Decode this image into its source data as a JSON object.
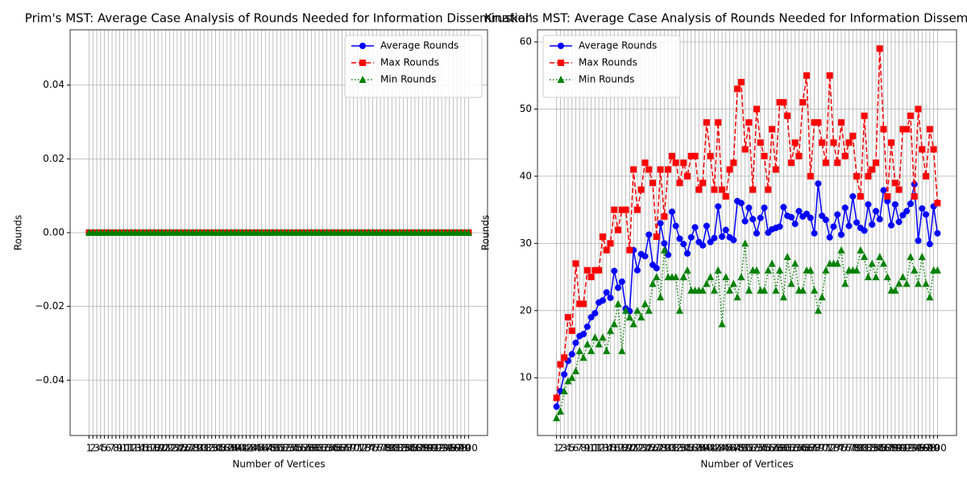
{
  "chart_data": [
    {
      "type": "line",
      "title": "Prim's MST: Average Case Analysis of Rounds Needed for Information Dissemination",
      "xlabel": "Number of Vertices",
      "ylabel": "Rounds",
      "categories": [
        "1",
        "2",
        "3",
        "4",
        "5",
        "6",
        "7",
        "8",
        "9",
        "10",
        "11",
        "12",
        "13",
        "14",
        "15",
        "16",
        "17",
        "18",
        "19",
        "20",
        "21",
        "22",
        "23",
        "24",
        "25",
        "26",
        "27",
        "28",
        "29",
        "30",
        "31",
        "32",
        "33",
        "34",
        "35",
        "36",
        "37",
        "38",
        "39",
        "40",
        "41",
        "42",
        "43",
        "44",
        "45",
        "46",
        "47",
        "48",
        "49",
        "50",
        "51",
        "52",
        "53",
        "54",
        "55",
        "56",
        "57",
        "58",
        "59",
        "60",
        "61",
        "62",
        "63",
        "64",
        "65",
        "66",
        "67",
        "68",
        "69",
        "70",
        "71",
        "72",
        "73",
        "74",
        "75",
        "76",
        "77",
        "78",
        "79",
        "80",
        "81",
        "82",
        "83",
        "84",
        "85",
        "86",
        "87",
        "88",
        "89",
        "90",
        "91",
        "92",
        "93",
        "94",
        "95",
        "96",
        "97",
        "98",
        "99",
        "100"
      ],
      "ylim": [
        -0.055,
        0.055
      ],
      "yticks": [
        {
          "value": -0.04,
          "label": "−0.04"
        },
        {
          "value": -0.02,
          "label": "−0.02"
        },
        {
          "value": 0,
          "label": "0.00"
        },
        {
          "value": 0.02,
          "label": "0.02"
        },
        {
          "value": 0.04,
          "label": "0.04"
        }
      ],
      "grid": true,
      "legend": "upper right",
      "series": [
        {
          "name": "Average Rounds",
          "color": "#0000ff",
          "marker": "circle",
          "dash": "solid",
          "values": [
            0,
            0,
            0,
            0,
            0,
            0,
            0,
            0,
            0,
            0,
            0,
            0,
            0,
            0,
            0,
            0,
            0,
            0,
            0,
            0,
            0,
            0,
            0,
            0,
            0,
            0,
            0,
            0,
            0,
            0,
            0,
            0,
            0,
            0,
            0,
            0,
            0,
            0,
            0,
            0,
            0,
            0,
            0,
            0,
            0,
            0,
            0,
            0,
            0,
            0,
            0,
            0,
            0,
            0,
            0,
            0,
            0,
            0,
            0,
            0,
            0,
            0,
            0,
            0,
            0,
            0,
            0,
            0,
            0,
            0,
            0,
            0,
            0,
            0,
            0,
            0,
            0,
            0,
            0,
            0,
            0,
            0,
            0,
            0,
            0,
            0,
            0,
            0,
            0,
            0,
            0,
            0,
            0,
            0,
            0,
            0,
            0,
            0,
            0,
            0
          ]
        },
        {
          "name": "Max Rounds",
          "color": "#ff0000",
          "marker": "square",
          "dash": "dashed",
          "values": [
            0,
            0,
            0,
            0,
            0,
            0,
            0,
            0,
            0,
            0,
            0,
            0,
            0,
            0,
            0,
            0,
            0,
            0,
            0,
            0,
            0,
            0,
            0,
            0,
            0,
            0,
            0,
            0,
            0,
            0,
            0,
            0,
            0,
            0,
            0,
            0,
            0,
            0,
            0,
            0,
            0,
            0,
            0,
            0,
            0,
            0,
            0,
            0,
            0,
            0,
            0,
            0,
            0,
            0,
            0,
            0,
            0,
            0,
            0,
            0,
            0,
            0,
            0,
            0,
            0,
            0,
            0,
            0,
            0,
            0,
            0,
            0,
            0,
            0,
            0,
            0,
            0,
            0,
            0,
            0,
            0,
            0,
            0,
            0,
            0,
            0,
            0,
            0,
            0,
            0,
            0,
            0,
            0,
            0,
            0,
            0,
            0,
            0,
            0,
            0
          ]
        },
        {
          "name": "Min Rounds",
          "color": "#008000",
          "marker": "triangle",
          "dash": "dotted",
          "values": [
            0,
            0,
            0,
            0,
            0,
            0,
            0,
            0,
            0,
            0,
            0,
            0,
            0,
            0,
            0,
            0,
            0,
            0,
            0,
            0,
            0,
            0,
            0,
            0,
            0,
            0,
            0,
            0,
            0,
            0,
            0,
            0,
            0,
            0,
            0,
            0,
            0,
            0,
            0,
            0,
            0,
            0,
            0,
            0,
            0,
            0,
            0,
            0,
            0,
            0,
            0,
            0,
            0,
            0,
            0,
            0,
            0,
            0,
            0,
            0,
            0,
            0,
            0,
            0,
            0,
            0,
            0,
            0,
            0,
            0,
            0,
            0,
            0,
            0,
            0,
            0,
            0,
            0,
            0,
            0,
            0,
            0,
            0,
            0,
            0,
            0,
            0,
            0,
            0,
            0,
            0,
            0,
            0,
            0,
            0,
            0,
            0,
            0,
            0,
            0
          ]
        }
      ]
    },
    {
      "type": "line",
      "title": "Kruskal's MST: Average Case Analysis of Rounds Needed for Information Dissemination",
      "xlabel": "Number of Vertices",
      "ylabel": "Rounds",
      "categories": [
        "1",
        "2",
        "3",
        "4",
        "5",
        "6",
        "7",
        "8",
        "9",
        "10",
        "11",
        "12",
        "13",
        "14",
        "15",
        "16",
        "17",
        "18",
        "19",
        "20",
        "21",
        "22",
        "23",
        "24",
        "25",
        "26",
        "27",
        "28",
        "29",
        "30",
        "31",
        "32",
        "33",
        "34",
        "35",
        "36",
        "37",
        "38",
        "39",
        "40",
        "41",
        "42",
        "43",
        "44",
        "45",
        "46",
        "47",
        "48",
        "49",
        "50",
        "51",
        "52",
        "53",
        "54",
        "55",
        "56",
        "57",
        "58",
        "59",
        "60",
        "61",
        "62",
        "63",
        "64",
        "65",
        "66",
        "67",
        "68",
        "69",
        "70",
        "71",
        "72",
        "73",
        "74",
        "75",
        "76",
        "77",
        "78",
        "79",
        "80",
        "81",
        "82",
        "83",
        "84",
        "85",
        "86",
        "87",
        "88",
        "89",
        "90",
        "91",
        "92",
        "93",
        "94",
        "95",
        "96",
        "97",
        "98",
        "99",
        "100"
      ],
      "ylim": [
        1.4,
        61.8
      ],
      "yticks": [
        10,
        20,
        30,
        40,
        50,
        60
      ],
      "grid": true,
      "legend": "upper left",
      "series": [
        {
          "name": "Average Rounds",
          "color": "#0000ff",
          "marker": "circle",
          "dash": "solid",
          "values": [
            5.7,
            8,
            10.5,
            12.5,
            13.5,
            15.2,
            16.2,
            16.5,
            17.6,
            19,
            19.6,
            21.2,
            21.5,
            22.7,
            21.9,
            25.9,
            23.4,
            24.3,
            20.3,
            19.9,
            29,
            26,
            28.4,
            28.1,
            31.3,
            26.8,
            26.3,
            33,
            30,
            28.3,
            34.7,
            32.6,
            30.7,
            29.9,
            28.5,
            30.9,
            32.4,
            30.2,
            29.7,
            32.6,
            30.2,
            30.8,
            35.5,
            31,
            32,
            30.9,
            30.5,
            36.3,
            36,
            33.3,
            35.3,
            33.6,
            31.5,
            33.8,
            35.3,
            31.6,
            32.1,
            32.3,
            32.5,
            35.4,
            34.1,
            33.9,
            32.9,
            34.8,
            34,
            34.4,
            33.8,
            31.5,
            38.9,
            34.1,
            33.5,
            30.9,
            32.5,
            34.3,
            31.3,
            35.3,
            32.6,
            37,
            33.1,
            32.3,
            31.9,
            35.8,
            32.8,
            34.8,
            33.6,
            37.9,
            36.3,
            32.7,
            35.8,
            33.2,
            34.2,
            34.8,
            35.9,
            38.8,
            30.4,
            35.2,
            34.3,
            29.9,
            35.5,
            31.5
          ]
        },
        {
          "name": "Max Rounds",
          "color": "#ff0000",
          "marker": "square",
          "dash": "dashed",
          "values": [
            7,
            12,
            13,
            19,
            17,
            27,
            21,
            21,
            26,
            25,
            26,
            26,
            31,
            29,
            30,
            35,
            32,
            35,
            35,
            29,
            41,
            35,
            38,
            42,
            41,
            39,
            31,
            41,
            34,
            41,
            43,
            42,
            39,
            42,
            40,
            43,
            43,
            38,
            39,
            48,
            43,
            38,
            48,
            38,
            37,
            41,
            42,
            53,
            54,
            44,
            48,
            38,
            50,
            45,
            43,
            38,
            47,
            41,
            51,
            51,
            49,
            42,
            45,
            43,
            51,
            55,
            40,
            48,
            48,
            45,
            42,
            55,
            45,
            42,
            48,
            43,
            45,
            46,
            40,
            37,
            49,
            40,
            41,
            42,
            59,
            47,
            37,
            45,
            39,
            38,
            47,
            47,
            49,
            37,
            50,
            44,
            40,
            47,
            44,
            36
          ]
        },
        {
          "name": "Min Rounds",
          "color": "#008000",
          "marker": "triangle",
          "dash": "dotted",
          "values": [
            4,
            5,
            8,
            9.5,
            10,
            11,
            14,
            13,
            15,
            14,
            16,
            15,
            16,
            14,
            17,
            18,
            21,
            14,
            20,
            19,
            18,
            20,
            19,
            21,
            20,
            24,
            25,
            22,
            29,
            25,
            25,
            25,
            20,
            25,
            26,
            23,
            23,
            23,
            23,
            24,
            25,
            23,
            26,
            18,
            25,
            23,
            24,
            22,
            25,
            30,
            23,
            26,
            26,
            23,
            23,
            26,
            27,
            23,
            26,
            22,
            28,
            24,
            27,
            23,
            23,
            26,
            26,
            23,
            20,
            22,
            26,
            27,
            27,
            27,
            29,
            24,
            26,
            26,
            26,
            29,
            28,
            25,
            27,
            25,
            28,
            27,
            25,
            23,
            23,
            24,
            25,
            24,
            28,
            26,
            24,
            28,
            24,
            22,
            26,
            26
          ]
        }
      ]
    }
  ]
}
